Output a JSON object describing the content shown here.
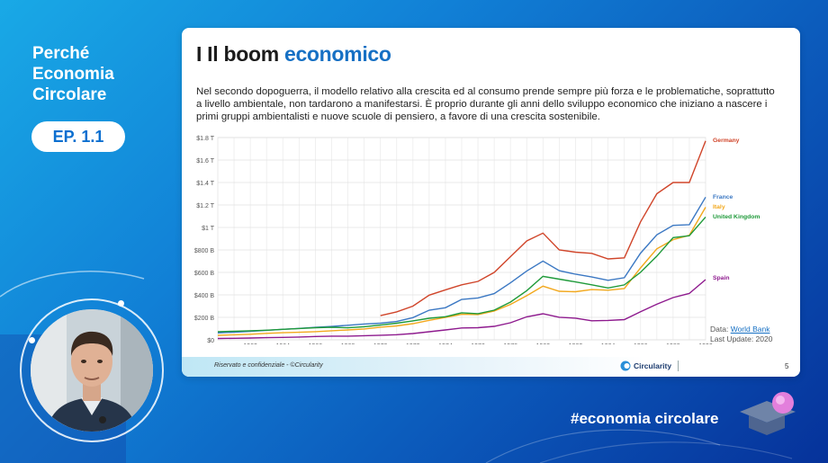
{
  "sidebar": {
    "title_lines": [
      "Perché",
      "Economia",
      "Circolare"
    ],
    "episode": "EP. 1.1"
  },
  "slide": {
    "title_prefix": "I Il boom",
    "title_accent": "economico",
    "body": "Nel secondo dopoguerra, il modello relativo alla crescita ed al consumo prende sempre più forza e le problematiche, soprattutto a livello ambientale, non tardarono a manifestarsi. È proprio durante gli anni dello sviluppo economico che iniziano a nascere i primi gruppi ambientalisti e nuove scuole di pensiero, a favore di una crescita sostenibile.",
    "source_prefix": "Data:",
    "source_link": "World Bank",
    "last_update": "Last Update: 2020",
    "footer_text": "Riservato e confidenziale - ©Circularity",
    "footer_brand": "Circularity",
    "page_number": "5"
  },
  "hashtag": "#economia circolare",
  "colors": {
    "germany": "#d0452a",
    "france": "#3b78c3",
    "italy": "#f2a81d",
    "uk": "#1f9a3a",
    "spain": "#8e1a8e",
    "accent": "#1670c4"
  },
  "chart_data": {
    "type": "line",
    "x": [
      1960,
      1961,
      1962,
      1963,
      1964,
      1965,
      1966,
      1967,
      1968,
      1969,
      1970,
      1971,
      1972,
      1973,
      1974,
      1975,
      1976,
      1977,
      1978,
      1979,
      1980,
      1981,
      1982,
      1983,
      1984,
      1985,
      1986,
      1987,
      1988,
      1989,
      1990
    ],
    "ylim": [
      0,
      1.8
    ],
    "yticks": [
      "$0",
      "$200 B",
      "$400 B",
      "$600 B",
      "$800 B",
      "$1 T",
      "$1.2 T",
      "$1.4 T",
      "$1.6 T",
      "$1.8 T"
    ],
    "xticks": [
      "1962",
      "1964",
      "1966",
      "1968",
      "1970",
      "1972",
      "1974",
      "1976",
      "1978",
      "1980",
      "1982",
      "1984",
      "1986",
      "1988",
      "1990"
    ],
    "grid": true,
    "legend": "right, at line ends",
    "series": [
      {
        "name": "Germany",
        "color_key": "germany",
        "values": [
          null,
          null,
          null,
          null,
          null,
          null,
          null,
          null,
          null,
          null,
          0.215,
          0.249,
          0.3,
          0.398,
          0.445,
          0.49,
          0.52,
          0.6,
          0.74,
          0.88,
          0.95,
          0.8,
          0.78,
          0.77,
          0.72,
          0.73,
          1.05,
          1.3,
          1.4,
          1.4,
          1.77
        ]
      },
      {
        "name": "France",
        "color_key": "france",
        "values": [
          0.062,
          0.068,
          0.076,
          0.085,
          0.094,
          0.102,
          0.111,
          0.119,
          0.13,
          0.141,
          0.148,
          0.163,
          0.198,
          0.264,
          0.286,
          0.36,
          0.373,
          0.411,
          0.507,
          0.613,
          0.701,
          0.615,
          0.584,
          0.559,
          0.53,
          0.553,
          0.771,
          0.934,
          1.018,
          1.025,
          1.27
        ]
      },
      {
        "name": "Italy",
        "color_key": "italy",
        "values": [
          0.04,
          0.045,
          0.05,
          0.058,
          0.063,
          0.067,
          0.073,
          0.081,
          0.088,
          0.097,
          0.113,
          0.124,
          0.144,
          0.174,
          0.199,
          0.227,
          0.225,
          0.257,
          0.315,
          0.393,
          0.478,
          0.432,
          0.428,
          0.447,
          0.442,
          0.457,
          0.64,
          0.81,
          0.891,
          0.93,
          1.18
        ]
      },
      {
        "name": "United Kingdom",
        "color_key": "uk",
        "values": [
          0.073,
          0.077,
          0.081,
          0.086,
          0.094,
          0.101,
          0.108,
          0.112,
          0.107,
          0.117,
          0.131,
          0.148,
          0.169,
          0.192,
          0.206,
          0.241,
          0.233,
          0.264,
          0.336,
          0.438,
          0.565,
          0.54,
          0.515,
          0.49,
          0.462,
          0.489,
          0.601,
          0.745,
          0.91,
          0.926,
          1.093
        ]
      },
      {
        "name": "Spain",
        "color_key": "spain",
        "values": [
          0.012,
          0.014,
          0.016,
          0.019,
          0.022,
          0.025,
          0.03,
          0.033,
          0.033,
          0.037,
          0.041,
          0.046,
          0.056,
          0.072,
          0.088,
          0.106,
          0.108,
          0.12,
          0.152,
          0.205,
          0.232,
          0.201,
          0.193,
          0.17,
          0.173,
          0.18,
          0.25,
          0.317,
          0.376,
          0.413,
          0.536
        ]
      }
    ]
  }
}
